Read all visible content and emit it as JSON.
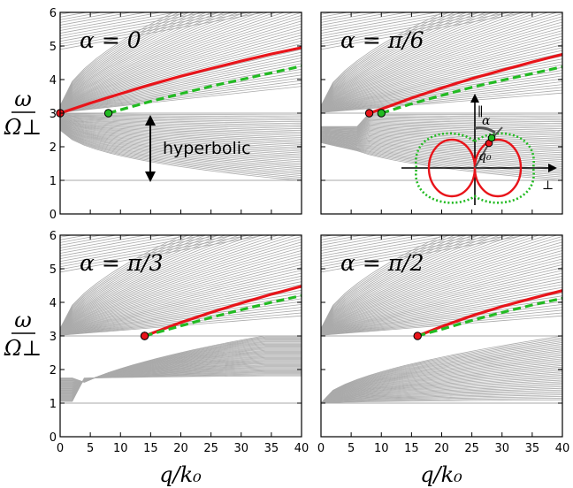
{
  "figure": {
    "ylabel_num": "ω",
    "ylabel_den": "Ω⊥",
    "xlabel": "q/k₀",
    "colors": {
      "background_lines": "#aaaaaa",
      "solid_curve": "#e8141a",
      "dashed_curve": "#22bb22",
      "axes": "#000000"
    },
    "annotation": "hyperbolic",
    "inset_labels": {
      "parallel": "∥",
      "perp": "⊥",
      "alpha": "α",
      "q0": "q₀"
    }
  },
  "chart_data": [
    {
      "type": "line",
      "title": "α = 0",
      "alpha_deg": 0,
      "xlim": [
        0,
        40
      ],
      "ylim": [
        0,
        6
      ],
      "xticks": [
        0,
        5,
        10,
        15,
        20,
        25,
        30,
        35,
        40
      ],
      "yticks": [
        0,
        1,
        2,
        3,
        4,
        5,
        6
      ],
      "series": [
        {
          "style": "solid",
          "x": [
            0,
            5,
            10,
            15,
            20,
            25,
            30,
            35,
            40
          ],
          "y": [
            3.0,
            3.3,
            3.58,
            3.85,
            4.1,
            4.33,
            4.55,
            4.76,
            4.95
          ]
        },
        {
          "style": "dashed",
          "x": [
            8,
            10,
            15,
            20,
            25,
            30,
            35,
            40
          ],
          "y": [
            3.0,
            3.1,
            3.35,
            3.58,
            3.8,
            4.0,
            4.2,
            4.4
          ]
        }
      ],
      "markers": [
        {
          "x": 0,
          "y": 3.0,
          "color": "red"
        },
        {
          "x": 8,
          "y": 3.0,
          "color": "green"
        }
      ],
      "bands": {
        "upper_edge": 3.0,
        "lower_top": 3.0,
        "lower_bottom": 1.0
      }
    },
    {
      "type": "line",
      "title": "α = π/6",
      "alpha_deg": 30,
      "xlim": [
        0,
        40
      ],
      "ylim": [
        0,
        6
      ],
      "xticks": [
        0,
        5,
        10,
        15,
        20,
        25,
        30,
        35,
        40
      ],
      "yticks": [
        0,
        1,
        2,
        3,
        4,
        5,
        6
      ],
      "series": [
        {
          "style": "solid",
          "x": [
            8,
            10,
            15,
            20,
            25,
            30,
            35,
            40
          ],
          "y": [
            3.0,
            3.12,
            3.45,
            3.75,
            4.03,
            4.28,
            4.52,
            4.75
          ]
        },
        {
          "style": "dashed",
          "x": [
            10,
            15,
            20,
            25,
            30,
            35,
            40
          ],
          "y": [
            3.0,
            3.28,
            3.53,
            3.77,
            3.98,
            4.18,
            4.38
          ]
        }
      ],
      "markers": [
        {
          "x": 8,
          "y": 3.0,
          "color": "red"
        },
        {
          "x": 10,
          "y": 3.0,
          "color": "green"
        }
      ],
      "bands": {
        "upper_edge": 3.0,
        "lower_top": 2.6,
        "lower_bottom": 1.0
      }
    },
    {
      "type": "line",
      "title": "α = π/3",
      "alpha_deg": 60,
      "xlim": [
        0,
        40
      ],
      "ylim": [
        0,
        6
      ],
      "xticks": [
        0,
        5,
        10,
        15,
        20,
        25,
        30,
        35,
        40
      ],
      "yticks": [
        0,
        1,
        2,
        3,
        4,
        5,
        6
      ],
      "series": [
        {
          "style": "solid",
          "x": [
            14,
            20,
            25,
            30,
            35,
            40
          ],
          "y": [
            3.0,
            3.4,
            3.7,
            3.98,
            4.24,
            4.48
          ]
        },
        {
          "style": "dashed",
          "x": [
            14,
            20,
            25,
            30,
            35,
            40
          ],
          "y": [
            3.0,
            3.3,
            3.55,
            3.78,
            4.0,
            4.2
          ]
        }
      ],
      "markers": [
        {
          "x": 14,
          "y": 3.0,
          "color": "red"
        },
        {
          "x": 14,
          "y": 3.0,
          "color": "green"
        }
      ],
      "bands": {
        "upper_edge": 3.0,
        "lower_top": 1.75,
        "lower_bottom": 1.0
      }
    },
    {
      "type": "line",
      "title": "α = π/2",
      "alpha_deg": 90,
      "xlim": [
        0,
        40
      ],
      "ylim": [
        0,
        6
      ],
      "xticks": [
        0,
        5,
        10,
        15,
        20,
        25,
        30,
        35,
        40
      ],
      "yticks": [
        0,
        1,
        2,
        3,
        4,
        5,
        6
      ],
      "series": [
        {
          "style": "solid",
          "x": [
            16,
            20,
            25,
            30,
            35,
            40
          ],
          "y": [
            3.0,
            3.28,
            3.6,
            3.88,
            4.12,
            4.35
          ]
        },
        {
          "style": "dashed",
          "x": [
            16,
            20,
            25,
            30,
            35,
            40
          ],
          "y": [
            3.0,
            3.2,
            3.46,
            3.7,
            3.92,
            4.12
          ]
        }
      ],
      "markers": [
        {
          "x": 16,
          "y": 3.0,
          "color": "red"
        }
      ],
      "bands": {
        "upper_edge": 3.0,
        "lower_top": 1.0,
        "lower_bottom": 1.0
      }
    }
  ]
}
